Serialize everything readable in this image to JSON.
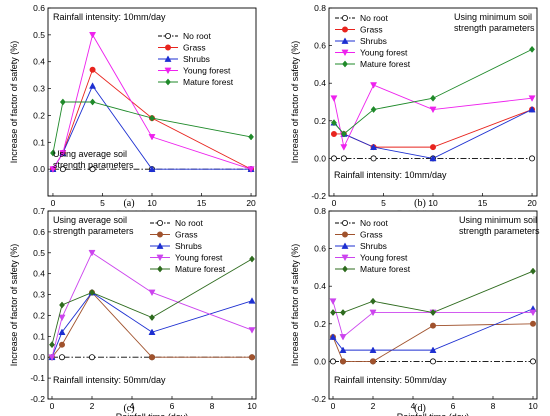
{
  "colors": {
    "No root": "#000000",
    "Grass": "#e8241e",
    "Shrubs": "#1d2fd1",
    "Young forest": "#ee22ee",
    "Mature forest": "#1f8a2a"
  },
  "colors_cd": {
    "No root": "#000000",
    "Grass": "#a0522d",
    "Shrubs": "#1d2fd1",
    "Young forest": "#cc44ee",
    "Mature forest": "#2e6b1e"
  },
  "chart_data": [
    {
      "type": "line",
      "panel_label": "(a)",
      "xlabel": "Rainfall time (day)",
      "ylabel": "Increase of factor of safety (%)",
      "xlim": [
        -0.5,
        20.5
      ],
      "ylim": [
        -0.1,
        0.6
      ],
      "xticks": [
        0,
        5,
        10,
        15,
        20
      ],
      "yticks": [
        -0.1,
        0.0,
        0.1,
        0.2,
        0.3,
        0.4,
        0.5,
        0.6
      ],
      "ytick_labels": [
        "",
        "0.0",
        "0.1",
        "0.2",
        "0.3",
        "0.4",
        "0.5",
        "0.6"
      ],
      "legend_position": "top-right",
      "annotations": [
        "Rainfall intensity: 10mm/day",
        "Using average soil",
        "strength parameters"
      ],
      "series": [
        {
          "name": "No root",
          "x": [
            0,
            1,
            4,
            10,
            20
          ],
          "y": [
            0,
            0,
            0,
            0,
            0
          ]
        },
        {
          "name": "Grass",
          "x": [
            0,
            1,
            4,
            10,
            20
          ],
          "y": [
            0,
            0.06,
            0.37,
            0.19,
            0
          ]
        },
        {
          "name": "Shrubs",
          "x": [
            0,
            1,
            4,
            10,
            20
          ],
          "y": [
            0,
            0.06,
            0.31,
            0,
            0
          ]
        },
        {
          "name": "Young forest",
          "x": [
            0,
            1,
            4,
            10,
            20
          ],
          "y": [
            0,
            0.06,
            0.5,
            0.12,
            0
          ]
        },
        {
          "name": "Mature forest",
          "x": [
            0,
            1,
            4,
            10,
            20
          ],
          "y": [
            0.06,
            0.25,
            0.25,
            0.19,
            0.12
          ]
        }
      ]
    },
    {
      "type": "line",
      "panel_label": "(b)",
      "xlabel": "Rainfall time (day)",
      "ylabel": "Increase of factor of safety (%)",
      "xlim": [
        -0.5,
        20.5
      ],
      "ylim": [
        -0.2,
        0.8
      ],
      "xticks": [
        0,
        5,
        10,
        15,
        20
      ],
      "yticks": [
        -0.2,
        0.0,
        0.2,
        0.4,
        0.6,
        0.8
      ],
      "ytick_labels": [
        "-0.2",
        "0.0",
        "0.2",
        "0.4",
        "0.6",
        "0.8"
      ],
      "legend_position": "top-left",
      "annotations": [
        "Using minimum soil",
        "strength parameters",
        "Rainfall intensity: 10mm/day"
      ],
      "series": [
        {
          "name": "No root",
          "x": [
            0,
            1,
            4,
            10,
            20
          ],
          "y": [
            0,
            0,
            0,
            0,
            0
          ]
        },
        {
          "name": "Grass",
          "x": [
            0,
            1,
            4,
            10,
            20
          ],
          "y": [
            0.13,
            0.13,
            0.06,
            0.06,
            0.26
          ]
        },
        {
          "name": "Shrubs",
          "x": [
            0,
            1,
            4,
            10,
            20
          ],
          "y": [
            0.19,
            0.13,
            0.06,
            0,
            0.26
          ]
        },
        {
          "name": "Young forest",
          "x": [
            0,
            1,
            4,
            10,
            20
          ],
          "y": [
            0.32,
            0.06,
            0.39,
            0.26,
            0.32
          ]
        },
        {
          "name": "Mature forest",
          "x": [
            0,
            1,
            4,
            10,
            20
          ],
          "y": [
            0.19,
            0.13,
            0.26,
            0.32,
            0.58
          ]
        }
      ]
    },
    {
      "type": "line",
      "panel_label": "(c)",
      "xlabel": "Rainfall time (day)",
      "ylabel": "Increase of factor of safety (%)",
      "xlim": [
        -0.2,
        10.2
      ],
      "ylim": [
        -0.2,
        0.7
      ],
      "xticks": [
        0,
        2,
        4,
        6,
        8,
        10
      ],
      "yticks": [
        -0.2,
        -0.1,
        0.0,
        0.1,
        0.2,
        0.3,
        0.4,
        0.5,
        0.6,
        0.7
      ],
      "ytick_labels": [
        "-0.2",
        "-0.1",
        "0.0",
        "0.1",
        "0.2",
        "0.3",
        "0.4",
        "0.5",
        "0.6",
        "0.7"
      ],
      "legend_position": "top-right",
      "annotations": [
        "Using average soil",
        "strength parameters",
        "Rainfall intensity: 50mm/day"
      ],
      "series": [
        {
          "name": "No root",
          "x": [
            0,
            0.5,
            2,
            5,
            10
          ],
          "y": [
            0,
            0,
            0,
            0,
            0
          ]
        },
        {
          "name": "Grass",
          "x": [
            0,
            0.5,
            2,
            5,
            10
          ],
          "y": [
            0,
            0.06,
            0.31,
            0,
            0
          ]
        },
        {
          "name": "Shrubs",
          "x": [
            0,
            0.5,
            2,
            5,
            10
          ],
          "y": [
            0,
            0.12,
            0.31,
            0.12,
            0.27
          ]
        },
        {
          "name": "Young forest",
          "x": [
            0,
            0.5,
            2,
            5,
            10
          ],
          "y": [
            0,
            0.19,
            0.5,
            0.31,
            0.13
          ]
        },
        {
          "name": "Mature forest",
          "x": [
            0,
            0.5,
            2,
            5,
            10
          ],
          "y": [
            0.06,
            0.25,
            0.31,
            0.19,
            0.47
          ]
        }
      ]
    },
    {
      "type": "line",
      "panel_label": "(d)",
      "xlabel": "Rainfall time (day)",
      "ylabel": "Increase of factor of safety (%)",
      "xlim": [
        -0.2,
        10.2
      ],
      "ylim": [
        -0.2,
        0.8
      ],
      "xticks": [
        0,
        2,
        4,
        6,
        8,
        10
      ],
      "yticks": [
        -0.2,
        0.0,
        0.2,
        0.4,
        0.6,
        0.8
      ],
      "ytick_labels": [
        "-0.2",
        "0.0",
        "0.2",
        "0.4",
        "0.6",
        "0.8"
      ],
      "legend_position": "top-left",
      "annotations": [
        "Using minimum soil",
        "strength parameters",
        "Rainfall intensity: 50mm/day"
      ],
      "series": [
        {
          "name": "No root",
          "x": [
            0,
            0.5,
            2,
            5,
            10
          ],
          "y": [
            0,
            0,
            0,
            0,
            0
          ]
        },
        {
          "name": "Grass",
          "x": [
            0,
            0.5,
            2,
            5,
            10
          ],
          "y": [
            0.13,
            0,
            0,
            0.19,
            0.2
          ]
        },
        {
          "name": "Shrubs",
          "x": [
            0,
            0.5,
            2,
            5,
            10
          ],
          "y": [
            0.13,
            0.06,
            0.06,
            0.06,
            0.28
          ]
        },
        {
          "name": "Young forest",
          "x": [
            0,
            0.5,
            2,
            5,
            10
          ],
          "y": [
            0.32,
            0.13,
            0.26,
            0.26,
            0.26
          ]
        },
        {
          "name": "Mature forest",
          "x": [
            0,
            0.5,
            2,
            5,
            10
          ],
          "y": [
            0.26,
            0.26,
            0.32,
            0.26,
            0.48
          ]
        }
      ]
    }
  ]
}
